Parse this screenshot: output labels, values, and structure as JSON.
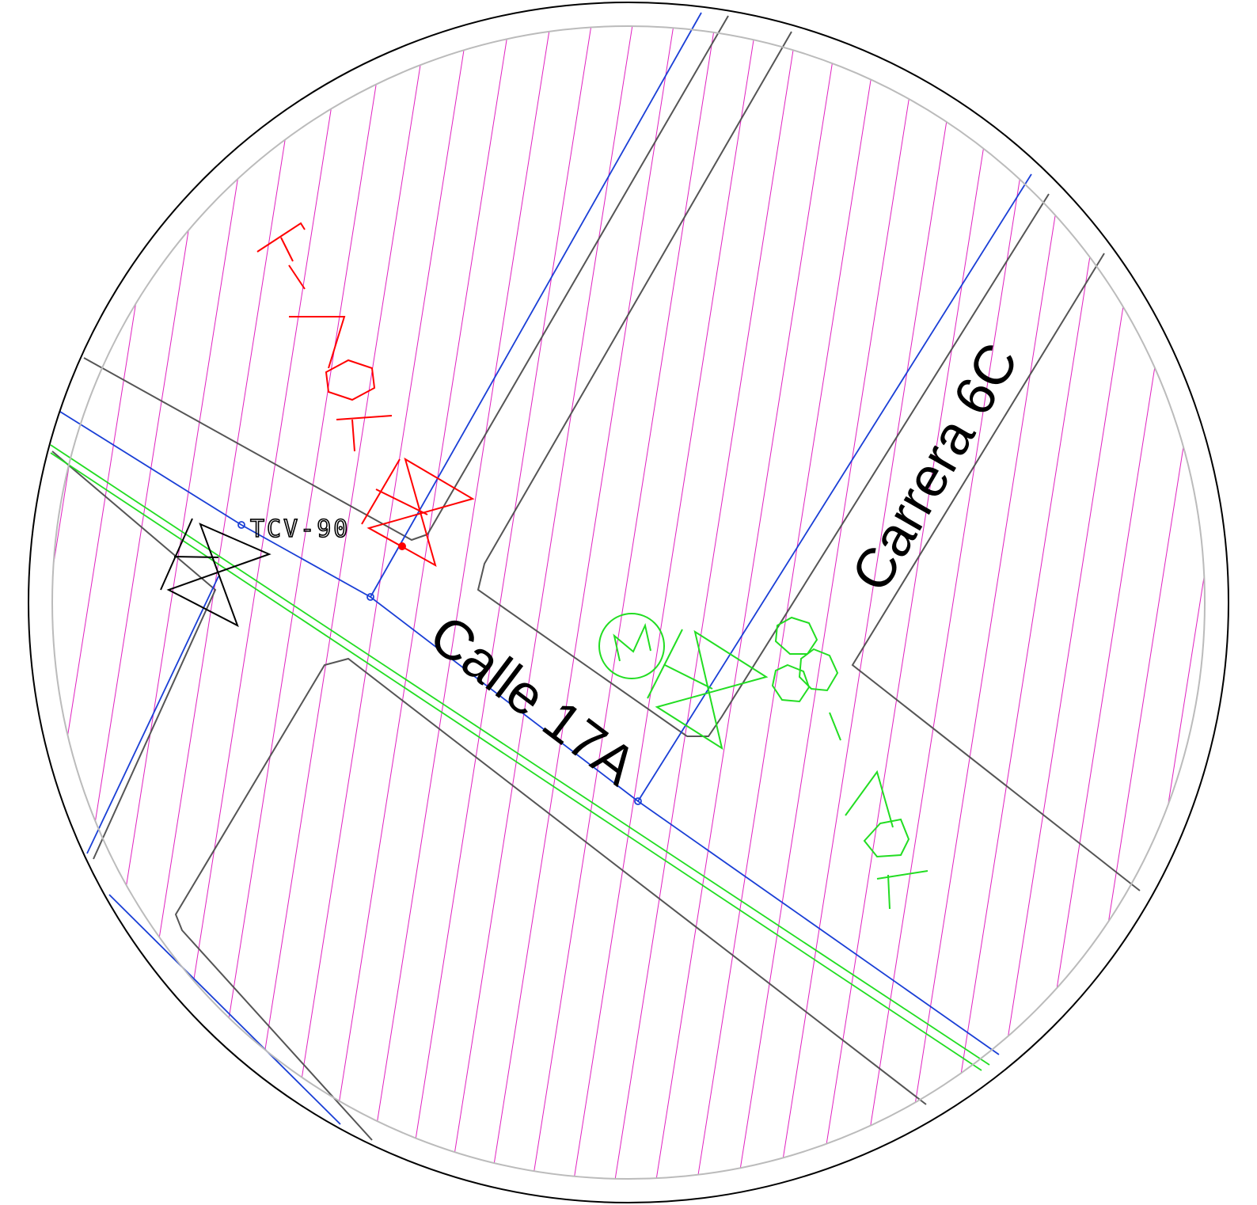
{
  "streets": {
    "calle": "Calle 17A",
    "carrera": "Carrera 6C"
  },
  "valve_tag": "TCV-90",
  "colors": {
    "hatch": "#e020c0",
    "pipe_blue": "#1a3fd6",
    "curb_gray": "#555555",
    "green_main": "#22dd22",
    "red_symbol": "#ff0000",
    "circle_outer": "#000000",
    "circle_inner": "#bbbbbb"
  }
}
